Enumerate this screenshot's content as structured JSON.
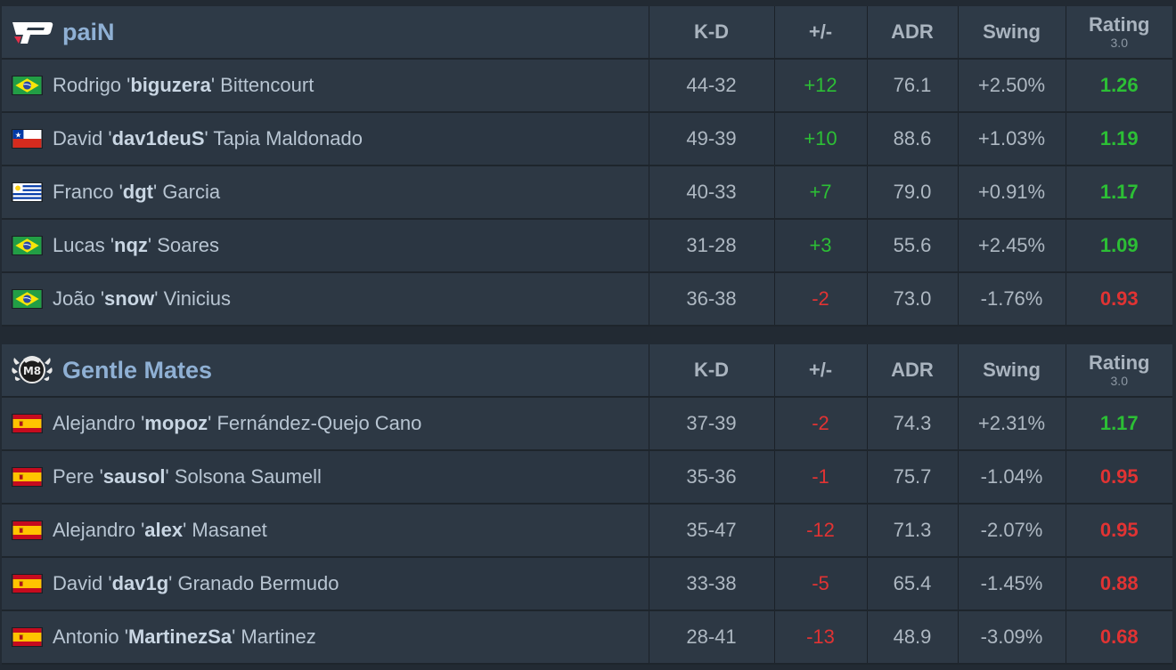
{
  "columns": {
    "kd": "K-D",
    "plus_minus": "+/-",
    "adr": "ADR",
    "swing": "Swing",
    "rating": "Rating",
    "rating_version": "3.0"
  },
  "colors": {
    "positive": "#2cbf35",
    "negative": "#e13333",
    "team_name": "#8fb0d4"
  },
  "teams": [
    {
      "name": "paiN",
      "logo_icon": "pain-logo-icon",
      "players": [
        {
          "first": "Rodrigo",
          "nick": "biguzera",
          "last": "Bittencourt",
          "flag": "brazil-flag-icon",
          "kd": "44-32",
          "pm": "+12",
          "pm_sign": "pos",
          "adr": "76.1",
          "swing": "+2.50%",
          "rating": "1.26",
          "rating_sign": "pos"
        },
        {
          "first": "David",
          "nick": "dav1deuS",
          "last": "Tapia Maldonado",
          "flag": "chile-flag-icon",
          "kd": "49-39",
          "pm": "+10",
          "pm_sign": "pos",
          "adr": "88.6",
          "swing": "+1.03%",
          "rating": "1.19",
          "rating_sign": "pos"
        },
        {
          "first": "Franco",
          "nick": "dgt",
          "last": "Garcia",
          "flag": "uruguay-flag-icon",
          "kd": "40-33",
          "pm": "+7",
          "pm_sign": "pos",
          "adr": "79.0",
          "swing": "+0.91%",
          "rating": "1.17",
          "rating_sign": "pos"
        },
        {
          "first": "Lucas",
          "nick": "nqz",
          "last": "Soares",
          "flag": "brazil-flag-icon",
          "kd": "31-28",
          "pm": "+3",
          "pm_sign": "pos",
          "adr": "55.6",
          "swing": "+2.45%",
          "rating": "1.09",
          "rating_sign": "pos"
        },
        {
          "first": "João",
          "nick": "snow",
          "last": "Vinicius",
          "flag": "brazil-flag-icon",
          "kd": "36-38",
          "pm": "-2",
          "pm_sign": "neg",
          "adr": "73.0",
          "swing": "-1.76%",
          "rating": "0.93",
          "rating_sign": "neg"
        }
      ]
    },
    {
      "name": "Gentle Mates",
      "logo_icon": "gentle-mates-logo-icon",
      "players": [
        {
          "first": "Alejandro",
          "nick": "mopoz",
          "last": "Fernández-Quejo Cano",
          "flag": "spain-flag-icon",
          "kd": "37-39",
          "pm": "-2",
          "pm_sign": "neg",
          "adr": "74.3",
          "swing": "+2.31%",
          "rating": "1.17",
          "rating_sign": "pos"
        },
        {
          "first": "Pere",
          "nick": "sausol",
          "last": "Solsona Saumell",
          "flag": "spain-flag-icon",
          "kd": "35-36",
          "pm": "-1",
          "pm_sign": "neg",
          "adr": "75.7",
          "swing": "-1.04%",
          "rating": "0.95",
          "rating_sign": "neg"
        },
        {
          "first": "Alejandro",
          "nick": "alex",
          "last": "Masanet",
          "flag": "spain-flag-icon",
          "kd": "35-47",
          "pm": "-12",
          "pm_sign": "neg",
          "adr": "71.3",
          "swing": "-2.07%",
          "rating": "0.95",
          "rating_sign": "neg"
        },
        {
          "first": "David",
          "nick": "dav1g",
          "last": "Granado Bermudo",
          "flag": "spain-flag-icon",
          "kd": "33-38",
          "pm": "-5",
          "pm_sign": "neg",
          "adr": "65.4",
          "swing": "-1.45%",
          "rating": "0.88",
          "rating_sign": "neg"
        },
        {
          "first": "Antonio",
          "nick": "MartinezSa",
          "last": "Martinez",
          "flag": "spain-flag-icon",
          "kd": "28-41",
          "pm": "-13",
          "pm_sign": "neg",
          "adr": "48.9",
          "swing": "-3.09%",
          "rating": "0.68",
          "rating_sign": "neg"
        }
      ]
    }
  ]
}
